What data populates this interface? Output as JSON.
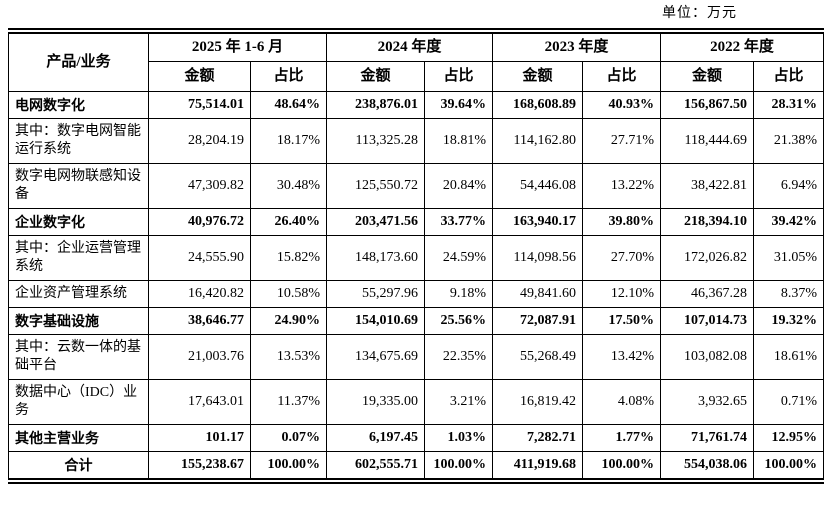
{
  "unit_label": "单位：万元",
  "colors": {
    "border": "#000000",
    "text": "#000000",
    "background": "#ffffff"
  },
  "table": {
    "corner_header": "产品/业务",
    "amount_header": "金额",
    "ratio_header": "占比",
    "periods": [
      {
        "label": "2025 年 1-6 月"
      },
      {
        "label": "2024 年度"
      },
      {
        "label": "2023 年度"
      },
      {
        "label": "2022 年度"
      }
    ],
    "rows": [
      {
        "label": "电网数字化",
        "bold": true,
        "label_align": "left",
        "cells": [
          "75,514.01",
          "48.64%",
          "238,876.01",
          "39.64%",
          "168,608.89",
          "40.93%",
          "156,867.50",
          "28.31%"
        ]
      },
      {
        "label": "其中：数字电网智能运行系统",
        "bold": false,
        "label_align": "left",
        "cells": [
          "28,204.19",
          "18.17%",
          "113,325.28",
          "18.81%",
          "114,162.80",
          "27.71%",
          "118,444.69",
          "21.38%"
        ]
      },
      {
        "label": "数字电网物联感知设备",
        "bold": false,
        "label_align": "left",
        "cells": [
          "47,309.82",
          "30.48%",
          "125,550.72",
          "20.84%",
          "54,446.08",
          "13.22%",
          "38,422.81",
          "6.94%"
        ]
      },
      {
        "label": "企业数字化",
        "bold": true,
        "label_align": "left",
        "cells": [
          "40,976.72",
          "26.40%",
          "203,471.56",
          "33.77%",
          "163,940.17",
          "39.80%",
          "218,394.10",
          "39.42%"
        ]
      },
      {
        "label": "其中：企业运营管理系统",
        "bold": false,
        "label_align": "left",
        "cells": [
          "24,555.90",
          "15.82%",
          "148,173.60",
          "24.59%",
          "114,098.56",
          "27.70%",
          "172,026.82",
          "31.05%"
        ]
      },
      {
        "label": "企业资产管理系统",
        "bold": false,
        "label_align": "left",
        "cells": [
          "16,420.82",
          "10.58%",
          "55,297.96",
          "9.18%",
          "49,841.60",
          "12.10%",
          "46,367.28",
          "8.37%"
        ]
      },
      {
        "label": "数字基础设施",
        "bold": true,
        "label_align": "left",
        "cells": [
          "38,646.77",
          "24.90%",
          "154,010.69",
          "25.56%",
          "72,087.91",
          "17.50%",
          "107,014.73",
          "19.32%"
        ]
      },
      {
        "label": "其中：云数一体的基础平台",
        "bold": false,
        "label_align": "left",
        "cells": [
          "21,003.76",
          "13.53%",
          "134,675.69",
          "22.35%",
          "55,268.49",
          "13.42%",
          "103,082.08",
          "18.61%"
        ]
      },
      {
        "label": "数据中心（IDC）业务",
        "bold": false,
        "label_align": "left",
        "cells": [
          "17,643.01",
          "11.37%",
          "19,335.00",
          "3.21%",
          "16,819.42",
          "4.08%",
          "3,932.65",
          "0.71%"
        ]
      },
      {
        "label": "其他主营业务",
        "bold": true,
        "label_align": "left",
        "cells": [
          "101.17",
          "0.07%",
          "6,197.45",
          "1.03%",
          "7,282.71",
          "1.77%",
          "71,761.74",
          "12.95%"
        ]
      },
      {
        "label": "合计",
        "bold": true,
        "label_align": "center",
        "cells": [
          "155,238.67",
          "100.00%",
          "602,555.71",
          "100.00%",
          "411,919.68",
          "100.00%",
          "554,038.06",
          "100.00%"
        ]
      }
    ]
  }
}
